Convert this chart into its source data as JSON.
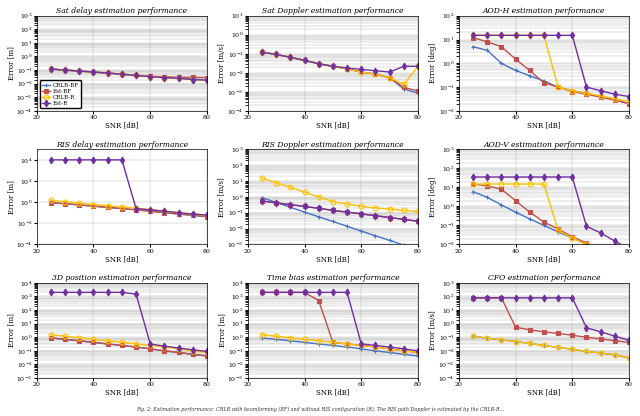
{
  "snr": [
    25,
    30,
    35,
    40,
    45,
    50,
    55,
    60,
    65,
    70,
    75,
    80
  ],
  "legend_labels": [
    "CRLB-BF",
    "Est-BF",
    "CRLB-R",
    "Est-R"
  ],
  "colors": [
    "#4472C4",
    "#C0504D",
    "#FFC000",
    "#7030A0"
  ],
  "markers": [
    "+",
    "s",
    "o",
    "d"
  ],
  "markerfacecolors": [
    "#4472C4",
    "#C0504D",
    "none",
    "#7030A0"
  ],
  "plots": {
    "sat_delay": {
      "title": "Sat delay estimation performance",
      "ylabel": "Error [m]",
      "ylim": [
        0.0001,
        1000.0
      ],
      "data": [
        [
          0.12,
          0.1,
          0.085,
          0.072,
          0.06,
          0.05,
          0.04,
          0.033,
          0.028,
          0.025,
          0.022,
          0.02
        ],
        [
          0.12,
          0.1,
          0.085,
          0.072,
          0.06,
          0.05,
          0.042,
          0.036,
          0.032,
          0.03,
          0.03,
          0.028
        ],
        [
          0.12,
          0.1,
          0.085,
          0.072,
          0.06,
          0.05,
          0.04,
          0.033,
          0.028,
          0.025,
          0.02,
          0.018
        ],
        [
          0.12,
          0.1,
          0.085,
          0.072,
          0.06,
          0.05,
          0.04,
          0.033,
          0.028,
          0.025,
          0.02,
          0.018
        ]
      ]
    },
    "sat_doppler": {
      "title": "Sat Doppler estimation performance",
      "ylabel": "Error [m/s]",
      "ylim": [
        0.0001,
        10.0
      ],
      "data": [
        [
          0.12,
          0.093,
          0.065,
          0.045,
          0.03,
          0.022,
          0.016,
          0.011,
          0.0085,
          0.0055,
          0.0014,
          0.00085
        ],
        [
          0.12,
          0.093,
          0.065,
          0.045,
          0.03,
          0.022,
          0.016,
          0.011,
          0.0085,
          0.0055,
          0.0017,
          0.0011
        ],
        [
          0.12,
          0.093,
          0.065,
          0.045,
          0.03,
          0.022,
          0.016,
          0.011,
          0.0085,
          0.0055,
          0.0025,
          0.022
        ],
        [
          0.12,
          0.093,
          0.065,
          0.045,
          0.03,
          0.022,
          0.018,
          0.015,
          0.013,
          0.011,
          0.022,
          0.022
        ]
      ]
    },
    "aod_h": {
      "title": "AOD-H estimation performance",
      "ylabel": "Error [deg]",
      "ylim": [
        0.01,
        100.0
      ],
      "data": [
        [
          5.0,
          3.5,
          1.0,
          0.5,
          0.3,
          0.18,
          0.1,
          0.07,
          0.055,
          0.04,
          0.03,
          0.02
        ],
        [
          12.0,
          8.0,
          5.0,
          1.5,
          0.5,
          0.15,
          0.1,
          0.065,
          0.05,
          0.038,
          0.028,
          0.02
        ],
        [
          15.0,
          15.0,
          15.0,
          15.0,
          15.0,
          15.0,
          0.1,
          0.07,
          0.055,
          0.042,
          0.032,
          0.025
        ],
        [
          15.0,
          15.0,
          15.0,
          15.0,
          15.0,
          15.0,
          15.0,
          15.0,
          0.1,
          0.07,
          0.05,
          0.04
        ]
      ]
    },
    "ris_delay": {
      "title": "RIS delay estimation performance",
      "ylabel": "Error [m]",
      "ylim": [
        0.0001,
        100000.0
      ],
      "data": [
        [
          0.9,
          0.7,
          0.55,
          0.42,
          0.32,
          0.25,
          0.19,
          0.14,
          0.1,
          0.076,
          0.055,
          0.042
        ],
        [
          0.9,
          0.7,
          0.55,
          0.42,
          0.32,
          0.25,
          0.19,
          0.14,
          0.1,
          0.076,
          0.06,
          0.042
        ],
        [
          1.5,
          1.1,
          0.8,
          0.6,
          0.45,
          0.35,
          0.26,
          0.19,
          0.14,
          0.1,
          0.076,
          0.055
        ],
        [
          10000.0,
          10000.0,
          10000.0,
          10000.0,
          10000.0,
          10000.0,
          0.25,
          0.19,
          0.14,
          0.1,
          0.076,
          0.06
        ]
      ]
    },
    "ris_doppler": {
      "title": "RIS Doppler estimation performance",
      "ylabel": "Error [m/s]",
      "ylim": [
        0.001,
        1000.0
      ],
      "data": [
        [
          0.9,
          0.45,
          0.22,
          0.11,
          0.055,
          0.028,
          0.014,
          0.007,
          0.0035,
          0.0018,
          0.0009,
          0.00045
        ],
        [
          0.55,
          0.42,
          0.32,
          0.25,
          0.19,
          0.14,
          0.11,
          0.085,
          0.065,
          0.05,
          0.038,
          0.029
        ],
        [
          15.0,
          8.0,
          4.0,
          2.0,
          1.0,
          0.5,
          0.35,
          0.25,
          0.2,
          0.17,
          0.14,
          0.12
        ],
        [
          0.55,
          0.42,
          0.32,
          0.25,
          0.19,
          0.14,
          0.11,
          0.085,
          0.065,
          0.05,
          0.038,
          0.029
        ]
      ]
    },
    "aod_v": {
      "title": "AOD-V estimation performance",
      "ylabel": "Error [deg]",
      "ylim": [
        0.01,
        1000.0
      ],
      "data": [
        [
          6.0,
          3.0,
          1.2,
          0.5,
          0.22,
          0.1,
          0.045,
          0.022,
          0.01,
          0.005,
          0.003,
          0.002
        ],
        [
          15.0,
          12.0,
          8.0,
          2.0,
          0.5,
          0.15,
          0.065,
          0.025,
          0.012,
          0.006,
          0.003,
          0.002
        ],
        [
          15.0,
          15.0,
          15.0,
          15.0,
          15.0,
          15.0,
          0.055,
          0.022,
          0.01,
          0.005,
          0.003,
          0.002
        ],
        [
          35.0,
          35.0,
          35.0,
          35.0,
          35.0,
          35.0,
          35.0,
          35.0,
          0.09,
          0.04,
          0.015,
          0.006
        ]
      ]
    },
    "pos_3d": {
      "title": "3D position estimation performance",
      "ylabel": "Error [m]",
      "ylim": [
        0.001,
        10000.0
      ],
      "data": [
        [
          0.9,
          0.7,
          0.55,
          0.42,
          0.32,
          0.25,
          0.19,
          0.14,
          0.1,
          0.076,
          0.055,
          0.042
        ],
        [
          0.9,
          0.7,
          0.55,
          0.42,
          0.32,
          0.25,
          0.19,
          0.14,
          0.1,
          0.076,
          0.055,
          0.042
        ],
        [
          1.5,
          1.2,
          0.9,
          0.7,
          0.55,
          0.42,
          0.32,
          0.25,
          0.19,
          0.14,
          0.1,
          0.076
        ],
        [
          2000.0,
          2000.0,
          2000.0,
          2000.0,
          2000.0,
          2000.0,
          1500.0,
          0.32,
          0.22,
          0.16,
          0.12,
          0.09
        ]
      ]
    },
    "time_bias": {
      "title": "Time bias estimation performance",
      "ylabel": "Error [m]",
      "ylim": [
        0.001,
        10000.0
      ],
      "data": [
        [
          0.9,
          0.7,
          0.55,
          0.42,
          0.32,
          0.25,
          0.19,
          0.14,
          0.1,
          0.076,
          0.055,
          0.042
        ],
        [
          2000.0,
          2000.0,
          2000.0,
          2000.0,
          500.0,
          0.42,
          0.32,
          0.25,
          0.19,
          0.14,
          0.1,
          0.076
        ],
        [
          1.5,
          1.2,
          0.9,
          0.7,
          0.55,
          0.42,
          0.32,
          0.25,
          0.19,
          0.14,
          0.1,
          0.076
        ],
        [
          2000.0,
          2000.0,
          2000.0,
          2000.0,
          2000.0,
          2000.0,
          2000.0,
          0.32,
          0.25,
          0.19,
          0.14,
          0.1
        ]
      ]
    },
    "cfo": {
      "title": "CFO estimation performance",
      "ylabel": "Error [m/s]",
      "ylim": [
        0.0001,
        1000.0
      ],
      "data": [
        [
          0.12,
          0.085,
          0.065,
          0.048,
          0.035,
          0.025,
          0.018,
          0.013,
          0.009,
          0.007,
          0.005,
          0.003
        ],
        [
          80.0,
          80.0,
          80.0,
          0.55,
          0.35,
          0.25,
          0.19,
          0.14,
          0.1,
          0.076,
          0.055,
          0.042
        ],
        [
          0.12,
          0.085,
          0.065,
          0.048,
          0.035,
          0.025,
          0.018,
          0.013,
          0.009,
          0.007,
          0.005,
          0.003
        ],
        [
          80.0,
          80.0,
          80.0,
          80.0,
          80.0,
          80.0,
          80.0,
          80.0,
          0.5,
          0.25,
          0.12,
          0.06
        ]
      ]
    }
  }
}
